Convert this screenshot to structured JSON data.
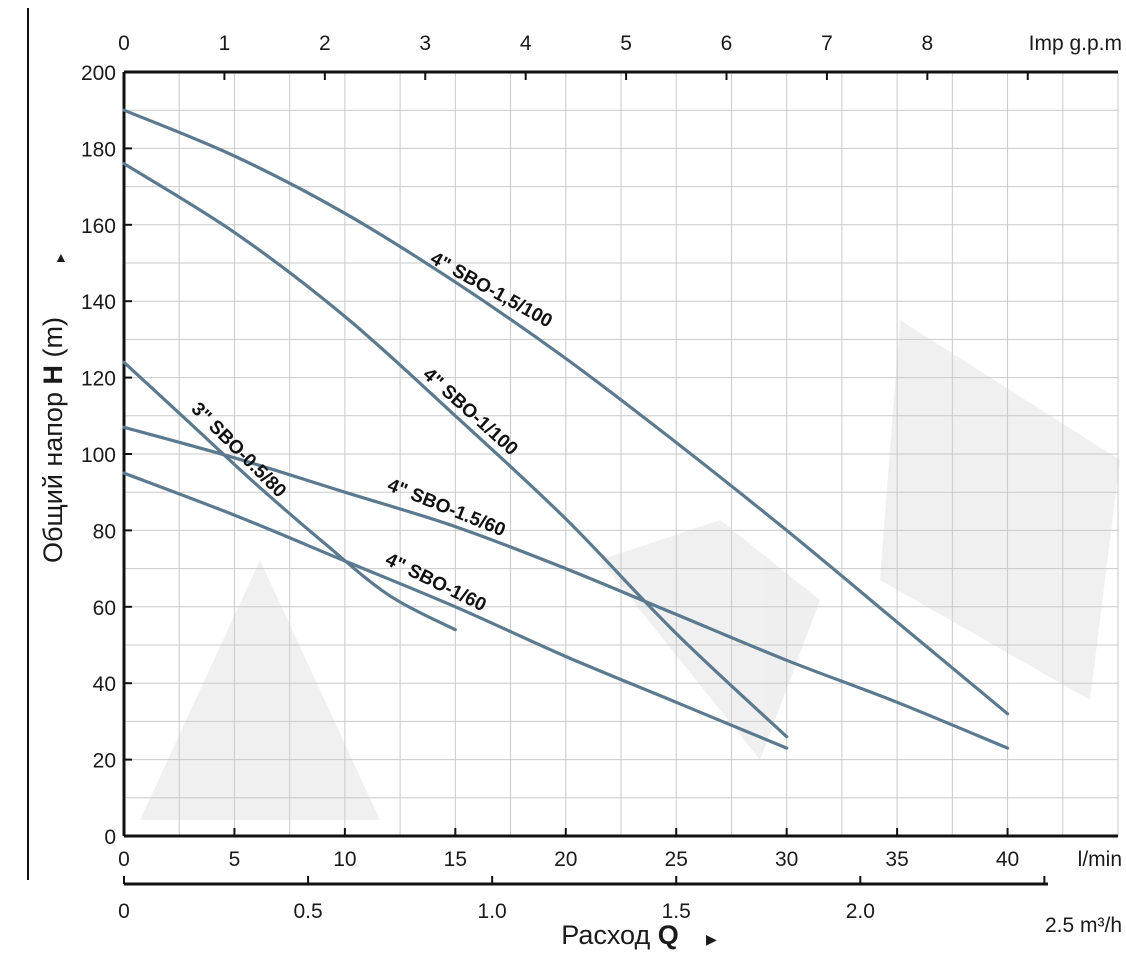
{
  "colors": {
    "curve": "#5b7a90",
    "grid": "#c9c9c9",
    "axis": "#111111",
    "text": "#1a1a1a"
  },
  "chart_data": {
    "type": "line",
    "title": "",
    "xlabel_prefix": "Расход",
    "xlabel_symbol": "Q",
    "ylabel_prefix": "Общий напор",
    "ylabel_symbol": "H",
    "ylabel_unit": "(m)",
    "xlim": [
      0,
      45
    ],
    "ylim": [
      0,
      200
    ],
    "grid": true,
    "x_ticks": [
      0,
      5,
      10,
      15,
      20,
      25,
      30,
      35,
      40
    ],
    "x_ticks_labels": [
      "0",
      "5",
      "10",
      "15",
      "20",
      "25",
      "30",
      "35",
      "40"
    ],
    "x_unit": "l/min",
    "y_ticks": [
      0,
      20,
      40,
      60,
      80,
      100,
      120,
      140,
      160,
      180,
      200
    ],
    "y_ticks_labels": [
      "0",
      "20",
      "40",
      "60",
      "80",
      "100",
      "120",
      "140",
      "160",
      "180",
      "200"
    ],
    "top_axis": {
      "unit": "Imp g.p.m",
      "ticks": [
        0,
        1,
        2,
        3,
        4,
        5,
        6,
        7,
        8
      ],
      "labels": [
        "0",
        "1",
        "2",
        "3",
        "4",
        "5",
        "6",
        "7",
        "8"
      ]
    },
    "bottom_axis2": {
      "unit": "2.5 m³/h",
      "ticks": [
        0,
        0.5,
        1.0,
        1.5,
        2.0
      ],
      "labels": [
        "0",
        "0.5",
        "1.0",
        "1.5",
        "2.0"
      ],
      "last_tick": 2.5
    },
    "series": [
      {
        "name": "4\" SBO-1,5/100",
        "x": [
          0,
          5,
          10,
          15,
          20,
          25,
          30,
          35,
          40
        ],
        "y": [
          190,
          178,
          163,
          145,
          125,
          103,
          80,
          56,
          32
        ],
        "label_x": 3.2,
        "label_angle": 29
      },
      {
        "name": "4\" SBO-1/100",
        "x": [
          0,
          5,
          10,
          15,
          20,
          25,
          30
        ],
        "y": [
          176,
          158,
          136,
          110,
          83,
          53,
          26
        ],
        "label_x": 3.25,
        "label_angle": 42
      },
      {
        "name": "3\" SBO-0.5/80",
        "x": [
          0,
          3,
          6,
          9,
          12,
          15
        ],
        "y": [
          124,
          108,
          92,
          77,
          63,
          54
        ],
        "label_x": 1.25,
        "label_angle": 45
      },
      {
        "name": "4\" SBO-1.5/60",
        "x": [
          0,
          5,
          10,
          15,
          20,
          25,
          30,
          35,
          40
        ],
        "y": [
          107,
          99,
          90,
          81,
          70,
          58,
          46,
          35,
          23
        ],
        "label_x": 3.3,
        "label_angle": 22
      },
      {
        "name": "4\" SBO-1/60",
        "x": [
          0,
          5,
          10,
          15,
          20,
          25,
          30
        ],
        "y": [
          95,
          84,
          72,
          60,
          47,
          35,
          23
        ],
        "label_x": 3.6,
        "label_angle": 26
      }
    ]
  }
}
